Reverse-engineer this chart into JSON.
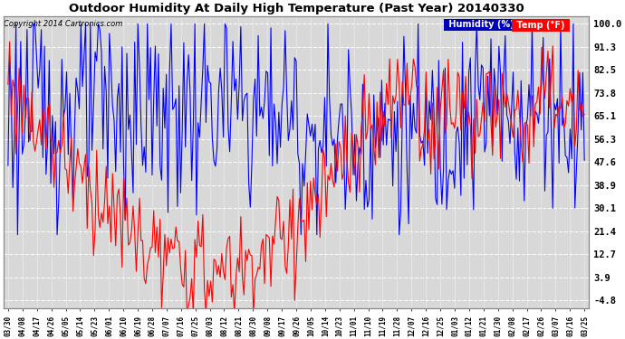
{
  "title": "Outdoor Humidity At Daily High Temperature (Past Year) 20140330",
  "copyright": "Copyright 2014 Cartronics.com",
  "yticks": [
    100.0,
    91.3,
    82.5,
    73.8,
    65.1,
    56.3,
    47.6,
    38.9,
    30.1,
    21.4,
    12.7,
    3.9,
    -4.8
  ],
  "ymin": -4.8,
  "ymax": 100.0,
  "bg_color": "#ffffff",
  "plot_bg_color": "#d8d8d8",
  "grid_color": "#ffffff",
  "humidity_color": "#0000ff",
  "temp_color": "#ff0000",
  "xtick_labels": [
    "03/30",
    "04/08",
    "04/17",
    "04/26",
    "05/05",
    "05/14",
    "05/23",
    "06/01",
    "06/10",
    "06/19",
    "06/28",
    "07/07",
    "07/16",
    "07/25",
    "08/03",
    "08/12",
    "08/21",
    "08/30",
    "09/08",
    "09/17",
    "09/26",
    "10/05",
    "10/14",
    "10/23",
    "11/01",
    "11/10",
    "11/19",
    "11/28",
    "12/07",
    "12/16",
    "12/25",
    "01/03",
    "01/12",
    "01/21",
    "01/30",
    "02/08",
    "02/17",
    "02/26",
    "03/07",
    "03/16",
    "03/25"
  ]
}
